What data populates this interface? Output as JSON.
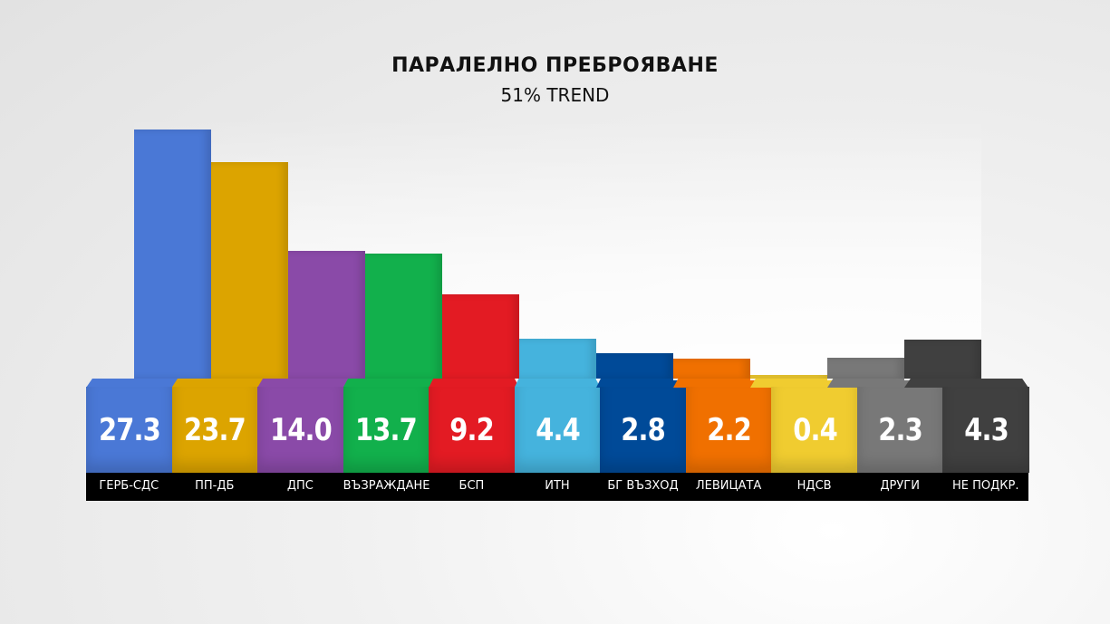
{
  "chart_data": {
    "type": "bar",
    "title": "ПАРАЛЕЛНО ПРЕБРОЯВАНЕ",
    "subtitle": "51%  TREND",
    "xlabel": "",
    "ylabel": "",
    "ylim": [
      0,
      28
    ],
    "grid": false,
    "categories": [
      "ГЕРБ-СДС",
      "ПП-ДБ",
      "ДПС",
      "ВЪЗРАЖДАНЕ",
      "БСП",
      "ИТН",
      "БГ ВЪЗХОД",
      "ЛЕВИЦАТА",
      "НДСВ",
      "ДРУГИ",
      "НЕ ПОДКР."
    ],
    "values": [
      27.3,
      23.7,
      14.0,
      13.7,
      9.2,
      4.4,
      2.8,
      2.2,
      0.4,
      2.3,
      4.3
    ],
    "value_labels": [
      "27.3",
      "23.7",
      "14.0",
      "13.7",
      "9.2",
      "4.4",
      "2.8",
      "2.2",
      "0.4",
      "2.3",
      "4.3"
    ],
    "colors": [
      "#4a78d6",
      "#dca400",
      "#8a4aa8",
      "#12b04c",
      "#e31b23",
      "#45b3dd",
      "#004a98",
      "#f07000",
      "#f0cc30",
      "#787878",
      "#404040"
    ]
  }
}
